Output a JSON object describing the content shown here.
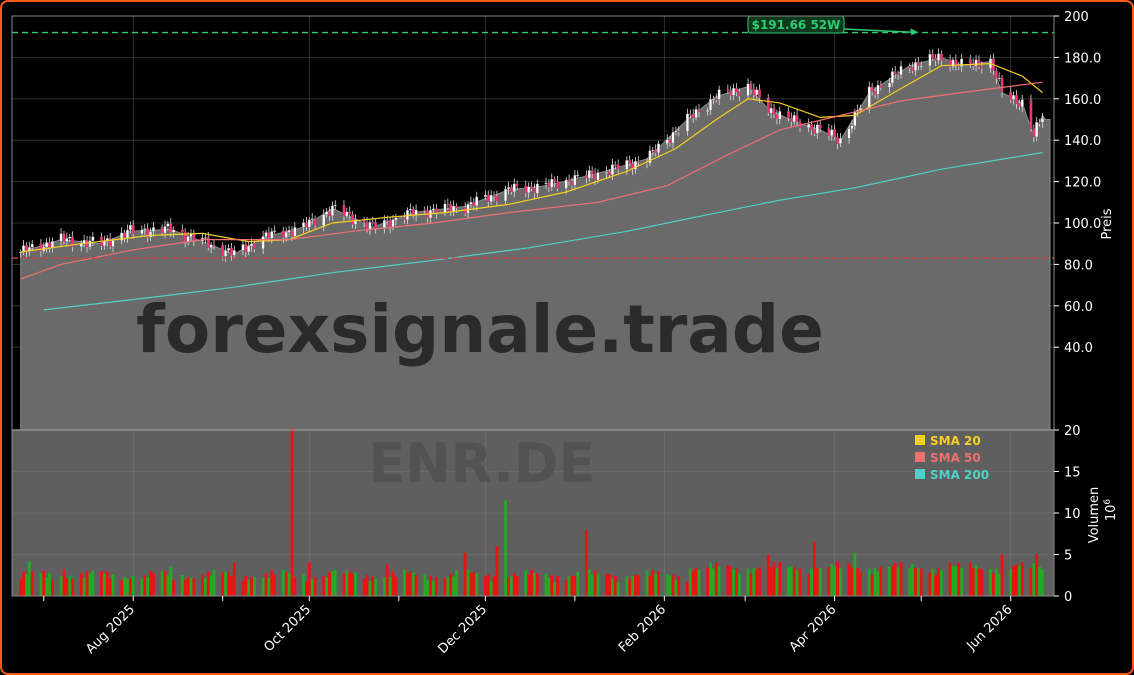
{
  "watermark": {
    "site": "forexsignale.trade",
    "symbol": "ENR.DE"
  },
  "colors": {
    "up": "#22aa22",
    "down": "#ee1111",
    "sma20": "#f5d020",
    "sma50": "#f07070",
    "sma200": "#4fd0c8",
    "annotation": "#2ecc71",
    "support": "#d04040",
    "border": "#ff5a14"
  },
  "chart_data": {
    "type": "line",
    "price_panel": {
      "ylabel": "Preis",
      "ylim": [
        0,
        200
      ],
      "yticks": [
        "40.0",
        "60.0",
        "80.0",
        "100.0",
        "120.0",
        "140.0",
        "160.0",
        "180.0",
        "200"
      ],
      "close_points": [
        [
          "2025-06-23",
          86
        ],
        [
          "2025-07-07",
          92
        ],
        [
          "2025-07-21",
          90
        ],
        [
          "2025-07-31",
          96
        ],
        [
          "2025-08-14",
          97
        ],
        [
          "2025-08-25",
          91
        ],
        [
          "2025-09-05",
          85
        ],
        [
          "2025-09-15",
          93
        ],
        [
          "2025-09-29",
          98
        ],
        [
          "2025-10-09",
          107
        ],
        [
          "2025-10-23",
          98
        ],
        [
          "2025-11-06",
          105
        ],
        [
          "2025-11-24",
          108
        ],
        [
          "2025-12-09",
          116
        ],
        [
          "2025-12-22",
          118
        ],
        [
          "2026-01-09",
          124
        ],
        [
          "2026-01-26",
          131
        ],
        [
          "2026-02-09",
          150
        ],
        [
          "2026-02-19",
          161
        ],
        [
          "2026-03-02",
          166
        ],
        [
          "2026-03-09",
          155
        ],
        [
          "2026-03-18",
          149
        ],
        [
          "2026-03-27",
          145
        ],
        [
          "2026-04-03",
          140
        ],
        [
          "2026-04-13",
          163
        ],
        [
          "2026-04-27",
          176
        ],
        [
          "2026-05-08",
          180
        ],
        [
          "2026-05-15",
          176
        ],
        [
          "2026-05-25",
          178
        ],
        [
          "2026-05-29",
          163
        ],
        [
          "2026-06-05",
          158
        ],
        [
          "2026-06-09",
          142
        ],
        [
          "2026-06-12",
          152
        ]
      ],
      "last_close_area": 150,
      "series": [
        {
          "name": "SMA 20",
          "color": "#f5d020",
          "points": [
            [
              "2025-06-23",
              86
            ],
            [
              "2025-07-14",
              90
            ],
            [
              "2025-08-07",
              94
            ],
            [
              "2025-08-25",
              95
            ],
            [
              "2025-09-10",
              91
            ],
            [
              "2025-09-24",
              92
            ],
            [
              "2025-10-09",
              100
            ],
            [
              "2025-10-30",
              103
            ],
            [
              "2025-11-17",
              105
            ],
            [
              "2025-12-09",
              109
            ],
            [
              "2025-12-29",
              115
            ],
            [
              "2026-01-19",
              125
            ],
            [
              "2026-02-05",
              136
            ],
            [
              "2026-02-19",
              150
            ],
            [
              "2026-03-02",
              160
            ],
            [
              "2026-03-13",
              158
            ],
            [
              "2026-03-27",
              151
            ],
            [
              "2026-04-08",
              152
            ],
            [
              "2026-04-24",
              165
            ],
            [
              "2026-05-08",
              176
            ],
            [
              "2026-05-25",
              177
            ],
            [
              "2026-06-05",
              171
            ],
            [
              "2026-06-12",
              163
            ]
          ]
        },
        {
          "name": "SMA 50",
          "color": "#f07070",
          "points": [
            [
              "2025-06-23",
              73
            ],
            [
              "2025-07-07",
              80
            ],
            [
              "2025-08-01",
              87
            ],
            [
              "2025-08-25",
              92
            ],
            [
              "2025-09-24",
              92
            ],
            [
              "2025-10-16",
              96
            ],
            [
              "2025-11-13",
              100
            ],
            [
              "2025-12-09",
              105
            ],
            [
              "2026-01-09",
              110
            ],
            [
              "2026-02-02",
              118
            ],
            [
              "2026-02-23",
              133
            ],
            [
              "2026-03-13",
              145
            ],
            [
              "2026-04-03",
              152
            ],
            [
              "2026-04-24",
              159
            ],
            [
              "2026-05-15",
              163
            ],
            [
              "2026-06-12",
              168
            ]
          ]
        },
        {
          "name": "SMA 200",
          "color": "#4fd0c8",
          "points": [
            [
              "2025-07-01",
              58
            ],
            [
              "2025-08-07",
              64
            ],
            [
              "2025-09-05",
              69
            ],
            [
              "2025-10-09",
              76
            ],
            [
              "2025-11-13",
              82
            ],
            [
              "2025-12-16",
              88
            ],
            [
              "2026-01-19",
              96
            ],
            [
              "2026-02-16",
              104
            ],
            [
              "2026-03-13",
              111
            ],
            [
              "2026-04-08",
              117
            ],
            [
              "2026-05-08",
              126
            ],
            [
              "2026-06-12",
              134
            ]
          ]
        }
      ],
      "annotations": {
        "high_label": "$191.66 52W",
        "high_value": 191.66,
        "high_date": "2026-04-30",
        "resistance_level": 192,
        "support_level": 83
      }
    },
    "volume_panel": {
      "ylabel": "Volumen",
      "unit": "10^6",
      "ylim": [
        0,
        20
      ],
      "yticks": [
        "0",
        "5",
        "10",
        "15",
        "20"
      ],
      "bars": [
        [
          "2025-06-26",
          4.2,
          "up"
        ],
        [
          "2025-07-03",
          2.8,
          "up"
        ],
        [
          "2025-07-08",
          3.2,
          "down"
        ],
        [
          "2025-08-05",
          2.5,
          "down"
        ],
        [
          "2025-08-14",
          3.5,
          "up"
        ],
        [
          "2025-09-05",
          4.0,
          "down"
        ],
        [
          "2025-09-25",
          20.2,
          "down"
        ],
        [
          "2025-10-01",
          4.0,
          "down"
        ],
        [
          "2025-10-09",
          3.0,
          "up"
        ],
        [
          "2025-10-28",
          3.8,
          "down"
        ],
        [
          "2025-11-24",
          5.2,
          "down"
        ],
        [
          "2025-12-05",
          6.0,
          "down"
        ],
        [
          "2025-12-08",
          11.5,
          "up"
        ],
        [
          "2026-01-05",
          8.0,
          "down"
        ],
        [
          "2026-02-13",
          3.2,
          "up"
        ],
        [
          "2026-03-09",
          5.0,
          "down"
        ],
        [
          "2026-03-25",
          6.5,
          "down"
        ],
        [
          "2026-04-08",
          5.2,
          "up"
        ],
        [
          "2026-05-11",
          4.0,
          "down"
        ],
        [
          "2026-05-29",
          5.0,
          "down"
        ],
        [
          "2026-06-10",
          5.1,
          "down"
        ]
      ],
      "baseline_volume": 2
    },
    "x_axis": {
      "start": "2025-06-20",
      "end": "2026-06-16",
      "tick_labels": [
        [
          "2025-08-01",
          "Aug 2025"
        ],
        [
          "2025-10-01",
          "Oct 2025"
        ],
        [
          "2025-12-01",
          "Dec 2025"
        ],
        [
          "2026-02-01",
          "Feb 2026"
        ],
        [
          "2026-04-01",
          "Apr 2026"
        ],
        [
          "2026-06-01",
          "Jun 2026"
        ]
      ]
    },
    "legend": {
      "position": "volume-panel top-right",
      "items": [
        {
          "label": "SMA 20",
          "color": "#f5d020"
        },
        {
          "label": "SMA 50",
          "color": "#f07070"
        },
        {
          "label": "SMA 200",
          "color": "#4fd0c8"
        }
      ]
    },
    "grid": true
  }
}
